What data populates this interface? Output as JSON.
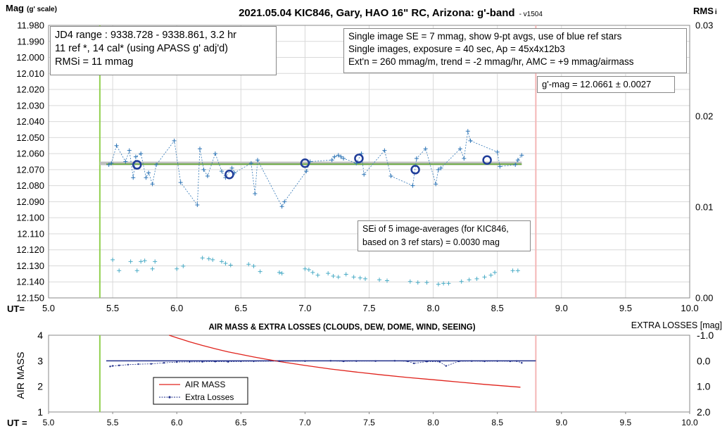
{
  "top": {
    "title": "2021.05.04 KIC846, Gary, HAO 16\" RC, Arizona: g'-band",
    "version": "- v1504",
    "ylabel_main": "Mag",
    "ylabel_sub": "(g' scale)",
    "rlabel": "RMS",
    "rlabel_sub": "i",
    "ut_label": "UT=",
    "info_left": [
      "JD4 range : 9338.728 - 9338.861,  3.2  hr",
      "11 ref *, 14 cal* (using APASS g' adj'd)",
      "RMSi = 11 mmag"
    ],
    "info_right": [
      "Single image SE = 7 mmag, show  9-pt avgs, use of blue ref stars",
      "Single images, exposure = 40 sec, Ap = 45x4x12b3",
      "Ext'n = 260 mmag/m, trend =  -2 mmag/hr, AMC = +9 mmag/airmass"
    ],
    "gmag": "g'-mag = 12.0661 ± 0.0027",
    "sei": [
      "SEi of 5 image-averages (for KIC846,",
      "based on 3 ref stars) = 0.0030 mag"
    ],
    "yticks": [
      "11.980",
      "11.990",
      "12.000",
      "12.010",
      "12.020",
      "12.030",
      "12.040",
      "12.050",
      "12.060",
      "12.070",
      "12.080",
      "12.090",
      "12.100",
      "12.110",
      "12.120",
      "12.130",
      "12.140",
      "12.150"
    ],
    "rticks": [
      "0.03",
      "0.02",
      "0.01",
      "0.00"
    ],
    "xticks": [
      "5.0",
      "5.5",
      "6.0",
      "6.5",
      "7.0",
      "7.5",
      "8.0",
      "8.5",
      "9.0",
      "9.5",
      "10.0"
    ]
  },
  "bottom": {
    "title": "AIR MASS & EXTRA LOSSES (CLOUDS, DEW, DOME, WIND, SEEING)",
    "right_title": "EXTRA LOSSES [mag]",
    "ylabel": "AIR MASS",
    "ut_label": "UT =",
    "yticks": [
      "4",
      "3",
      "2",
      "1"
    ],
    "rticks": [
      "-1.0",
      "0.0",
      "1.0",
      "2.0"
    ],
    "xticks": [
      "5.0",
      "5.5",
      "6.0",
      "6.5",
      "7.0",
      "7.5",
      "8.0",
      "8.5",
      "9.0",
      "9.5",
      "10.0"
    ],
    "legend": [
      "AIR MASS",
      "Extra Losses"
    ]
  },
  "colors": {
    "star": "#2e75b6",
    "avg": "#1f3c99",
    "mean_line": "#70ad47",
    "gray_line": "#bfbfbf",
    "rms": "#4bacc6",
    "airmass": "#e0231c",
    "losses": "#1f2e8a",
    "start_line": "#92d050",
    "end_line": "#f4b6b6"
  },
  "chart_data": [
    {
      "type": "scatter",
      "title": "2021.05.04 KIC846, Gary, HAO 16\" RC, Arizona: g'-band",
      "xlabel": "UT=",
      "ylabel": "Mag (g' scale)",
      "y2label": "RMSi",
      "xlim": [
        5.0,
        10.0
      ],
      "ylim": [
        12.15,
        11.98
      ],
      "y2lim": [
        0.0,
        0.03
      ],
      "grid": true,
      "mean_mag": 12.0661,
      "vlines": [
        5.4,
        8.8
      ],
      "series": [
        {
          "x": [
            5.47,
            5.49,
            5.53,
            5.6,
            5.63,
            5.66,
            5.68,
            5.72,
            5.76,
            5.78,
            5.81,
            5.84,
            5.98,
            6.03,
            6.16,
            6.18,
            6.21,
            6.24,
            6.3,
            6.35,
            6.38,
            6.43,
            6.45,
            6.58,
            6.61,
            6.63,
            6.82,
            6.84,
            7.01,
            7.04,
            7.21,
            7.23,
            7.26,
            7.28,
            7.3,
            7.4,
            7.44,
            7.46,
            7.62,
            7.67,
            7.84,
            7.87,
            7.94,
            8.02,
            8.04,
            8.06,
            8.21,
            8.24,
            8.27,
            8.29,
            8.5,
            8.52,
            8.64,
            8.66,
            8.69
          ],
          "values": [
            12.067,
            12.066,
            12.055,
            12.065,
            12.058,
            12.075,
            12.062,
            12.06,
            12.075,
            12.072,
            12.079,
            12.067,
            12.052,
            12.078,
            12.092,
            12.057,
            12.07,
            12.074,
            12.06,
            12.071,
            12.075,
            12.069,
            12.072,
            12.066,
            12.085,
            12.064,
            12.093,
            12.09,
            12.071,
            12.065,
            12.064,
            12.062,
            12.061,
            12.062,
            12.063,
            12.066,
            12.06,
            12.073,
            12.058,
            12.074,
            12.08,
            12.063,
            12.057,
            12.079,
            12.07,
            12.069,
            12.057,
            12.063,
            12.046,
            12.052,
            12.059,
            12.068,
            12.067,
            12.064,
            12.061
          ]
        },
        {
          "name": "9-pt avgs",
          "x": [
            5.69,
            6.41,
            7.0,
            7.42,
            7.86,
            8.42
          ],
          "values": [
            12.067,
            12.073,
            12.066,
            12.063,
            12.07,
            12.064
          ]
        },
        {
          "x": [
            5.5,
            5.55,
            5.64,
            5.69,
            5.72,
            5.75,
            5.81,
            5.83,
            6.0,
            6.05,
            6.2,
            6.25,
            6.28,
            6.35,
            6.38,
            6.42,
            6.56,
            6.6,
            6.65,
            6.8,
            6.82,
            7.0,
            7.03,
            7.06,
            7.1,
            7.18,
            7.22,
            7.26,
            7.32,
            7.38,
            7.43,
            7.47,
            7.58,
            7.64,
            7.82,
            7.88,
            7.95,
            8.04,
            8.08,
            8.12,
            8.22,
            8.28,
            8.34,
            8.4,
            8.45,
            8.48,
            8.62,
            8.66
          ],
          "rmsi": [
            0.0042,
            0.003,
            0.004,
            0.003,
            0.004,
            0.0041,
            0.0032,
            0.004,
            0.0032,
            0.0035,
            0.0044,
            0.0043,
            0.0042,
            0.004,
            0.0038,
            0.0036,
            0.0037,
            0.0035,
            0.0029,
            0.0028,
            0.0027,
            0.0032,
            0.0031,
            0.0028,
            0.0025,
            0.0027,
            0.0024,
            0.0023,
            0.0026,
            0.0023,
            0.0022,
            0.0021,
            0.002,
            0.0019,
            0.0018,
            0.0017,
            0.0017,
            0.0015,
            0.0016,
            0.0016,
            0.0018,
            0.002,
            0.0021,
            0.0023,
            0.0025,
            0.0028,
            0.003,
            0.003
          ]
        }
      ]
    },
    {
      "type": "line",
      "title": "AIR MASS & EXTRA LOSSES (CLOUDS, DEW, DOME, WIND, SEEING)",
      "xlabel": "UT =",
      "ylabel": "AIR MASS",
      "y2label": "EXTRA LOSSES [mag]",
      "xlim": [
        5.0,
        10.0
      ],
      "ylim": [
        1,
        4
      ],
      "y2lim": [
        -1.0,
        2.0
      ],
      "legend": "lower-left",
      "series": [
        {
          "name": "AIR MASS",
          "x": [
            5.94,
            6.0,
            6.1,
            6.2,
            6.3,
            6.4,
            6.5,
            6.6,
            6.8,
            7.0,
            7.2,
            7.4,
            7.6,
            7.8,
            8.0,
            8.2,
            8.4,
            8.6,
            8.68
          ],
          "values": [
            4.0,
            3.9,
            3.74,
            3.6,
            3.47,
            3.35,
            3.25,
            3.15,
            2.97,
            2.82,
            2.68,
            2.56,
            2.45,
            2.35,
            2.26,
            2.17,
            2.08,
            2.0,
            1.97
          ]
        },
        {
          "name": "Extra Losses",
          "x": [
            5.48,
            5.5,
            5.55,
            5.62,
            5.7,
            5.8,
            5.9,
            6.0,
            6.1,
            6.2,
            6.3,
            6.4,
            6.5,
            6.6,
            6.8,
            7.0,
            7.2,
            7.3,
            7.4,
            7.55,
            7.7,
            7.8,
            7.85,
            7.95,
            8.05,
            8.1,
            8.2,
            8.3,
            8.4,
            8.5,
            8.6,
            8.65,
            8.69
          ],
          "values": [
            0.22,
            0.2,
            0.18,
            0.15,
            0.13,
            0.12,
            0.08,
            0.05,
            0.04,
            0.04,
            0.03,
            0.04,
            0.02,
            0.02,
            0.01,
            0.01,
            0.0,
            0.02,
            0.01,
            0.01,
            0.0,
            0.02,
            0.1,
            0.03,
            0.04,
            0.2,
            0.02,
            0.01,
            0.02,
            0.01,
            0.02,
            0.01,
            0.08
          ]
        }
      ]
    }
  ]
}
